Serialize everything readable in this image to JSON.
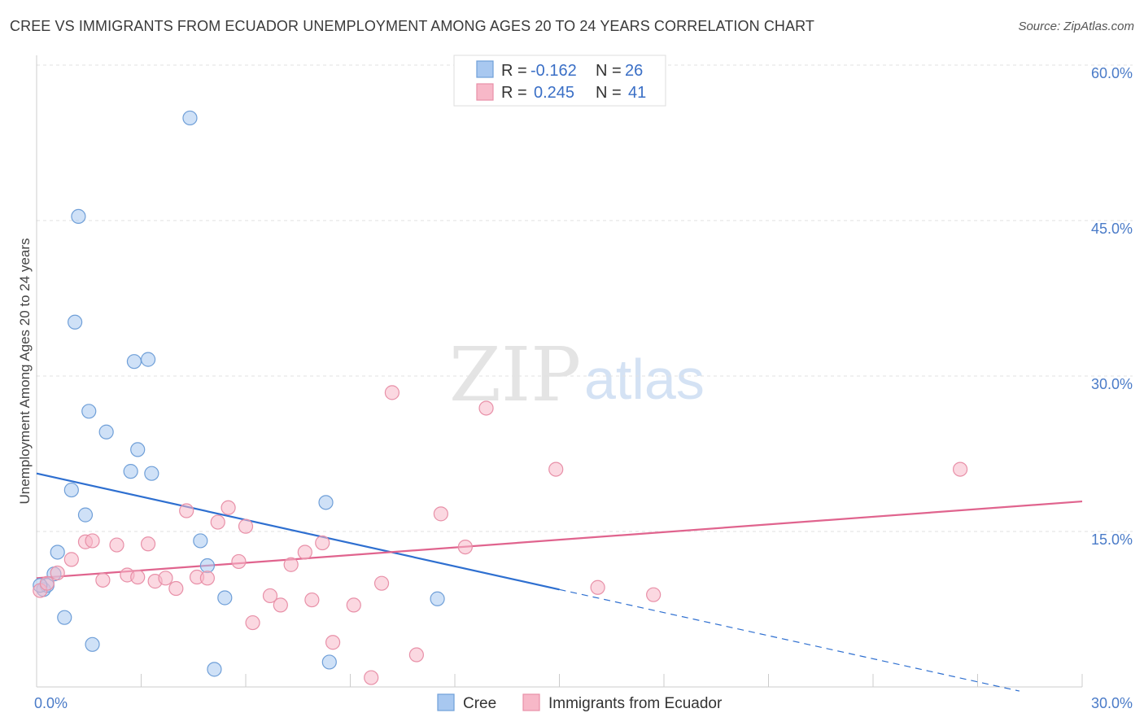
{
  "title": "CREE VS IMMIGRANTS FROM ECUADOR UNEMPLOYMENT AMONG AGES 20 TO 24 YEARS CORRELATION CHART",
  "source": "Source: ZipAtlas.com",
  "watermark": {
    "zip": "ZIP",
    "atlas": "atlas"
  },
  "legend_box": [
    {
      "r_label": "R =",
      "r_value": "-0.162",
      "n_label": "N =",
      "n_value": "26",
      "color": "#a8c8f0"
    },
    {
      "r_label": "R =",
      "r_value": "0.245",
      "n_label": "N =",
      "n_value": "41",
      "color": "#f7b8c8"
    }
  ],
  "bottom_legend": [
    {
      "label": "Cree",
      "color": "#a8c8f0"
    },
    {
      "label": "Immigrants from Ecuador",
      "color": "#f7b8c8"
    }
  ],
  "chart_data": {
    "type": "scatter",
    "title": "CREE VS IMMIGRANTS FROM ECUADOR UNEMPLOYMENT AMONG AGES 20 TO 24 YEARS CORRELATION CHART",
    "xlabel": "",
    "ylabel": "Unemployment Among Ages 20 to 24 years",
    "xlim": [
      0,
      30
    ],
    "ylim": [
      0,
      60
    ],
    "x_tick_labels": [
      "0.0%",
      "30.0%"
    ],
    "y_ticks": [
      15,
      30,
      45,
      60
    ],
    "y_tick_labels": [
      "15.0%",
      "30.0%",
      "45.0%",
      "60.0%"
    ],
    "grid": true,
    "series": [
      {
        "name": "Cree",
        "color": "#a8c8f0",
        "stroke": "#6f9fd8",
        "trend_color": "#2e6fd0",
        "trend": {
          "x0": 0,
          "y0": 20.6,
          "x1": 15,
          "y1": 9.4,
          "dash_to_x": 28.2,
          "dash_to_y": -0.4
        },
        "points": [
          [
            0.2,
            9.4
          ],
          [
            0.3,
            9.8
          ],
          [
            0.5,
            10.9
          ],
          [
            0.6,
            13.0
          ],
          [
            0.8,
            6.7
          ],
          [
            1.0,
            19.0
          ],
          [
            1.2,
            45.4
          ],
          [
            1.1,
            35.2
          ],
          [
            1.4,
            16.6
          ],
          [
            1.5,
            26.6
          ],
          [
            1.6,
            4.1
          ],
          [
            2.0,
            24.6
          ],
          [
            2.7,
            20.8
          ],
          [
            2.8,
            31.4
          ],
          [
            2.9,
            22.9
          ],
          [
            3.2,
            31.6
          ],
          [
            3.3,
            20.6
          ],
          [
            4.4,
            54.9
          ],
          [
            4.7,
            14.1
          ],
          [
            4.9,
            11.7
          ],
          [
            5.1,
            1.7
          ],
          [
            5.4,
            8.6
          ],
          [
            8.3,
            17.8
          ],
          [
            8.4,
            2.4
          ],
          [
            11.5,
            8.5
          ],
          [
            0.1,
            9.8
          ]
        ]
      },
      {
        "name": "Immigrants from Ecuador",
        "color": "#f7b8c8",
        "stroke": "#e890a8",
        "trend_color": "#e0648e",
        "trend": {
          "x0": 0,
          "y0": 10.5,
          "x1": 30,
          "y1": 17.9
        },
        "points": [
          [
            0.1,
            9.3
          ],
          [
            0.3,
            10.0
          ],
          [
            0.6,
            11.0
          ],
          [
            1.0,
            12.3
          ],
          [
            1.4,
            14.0
          ],
          [
            1.6,
            14.1
          ],
          [
            1.9,
            10.3
          ],
          [
            2.3,
            13.7
          ],
          [
            2.6,
            10.8
          ],
          [
            2.9,
            10.6
          ],
          [
            3.2,
            13.8
          ],
          [
            3.4,
            10.2
          ],
          [
            3.7,
            10.5
          ],
          [
            4.0,
            9.5
          ],
          [
            4.3,
            17.0
          ],
          [
            4.6,
            10.6
          ],
          [
            4.9,
            10.5
          ],
          [
            5.2,
            15.9
          ],
          [
            5.5,
            17.3
          ],
          [
            5.8,
            12.1
          ],
          [
            6.0,
            15.5
          ],
          [
            6.2,
            6.2
          ],
          [
            6.7,
            8.8
          ],
          [
            7.0,
            7.9
          ],
          [
            7.3,
            11.8
          ],
          [
            7.7,
            13.0
          ],
          [
            7.9,
            8.4
          ],
          [
            8.2,
            13.9
          ],
          [
            8.5,
            4.3
          ],
          [
            9.1,
            7.9
          ],
          [
            9.6,
            0.9
          ],
          [
            9.9,
            10.0
          ],
          [
            10.2,
            28.4
          ],
          [
            10.9,
            3.1
          ],
          [
            11.6,
            16.7
          ],
          [
            12.3,
            13.5
          ],
          [
            12.9,
            26.9
          ],
          [
            14.9,
            21.0
          ],
          [
            16.1,
            9.6
          ],
          [
            17.7,
            8.9
          ],
          [
            26.5,
            21.0
          ]
        ]
      }
    ]
  }
}
